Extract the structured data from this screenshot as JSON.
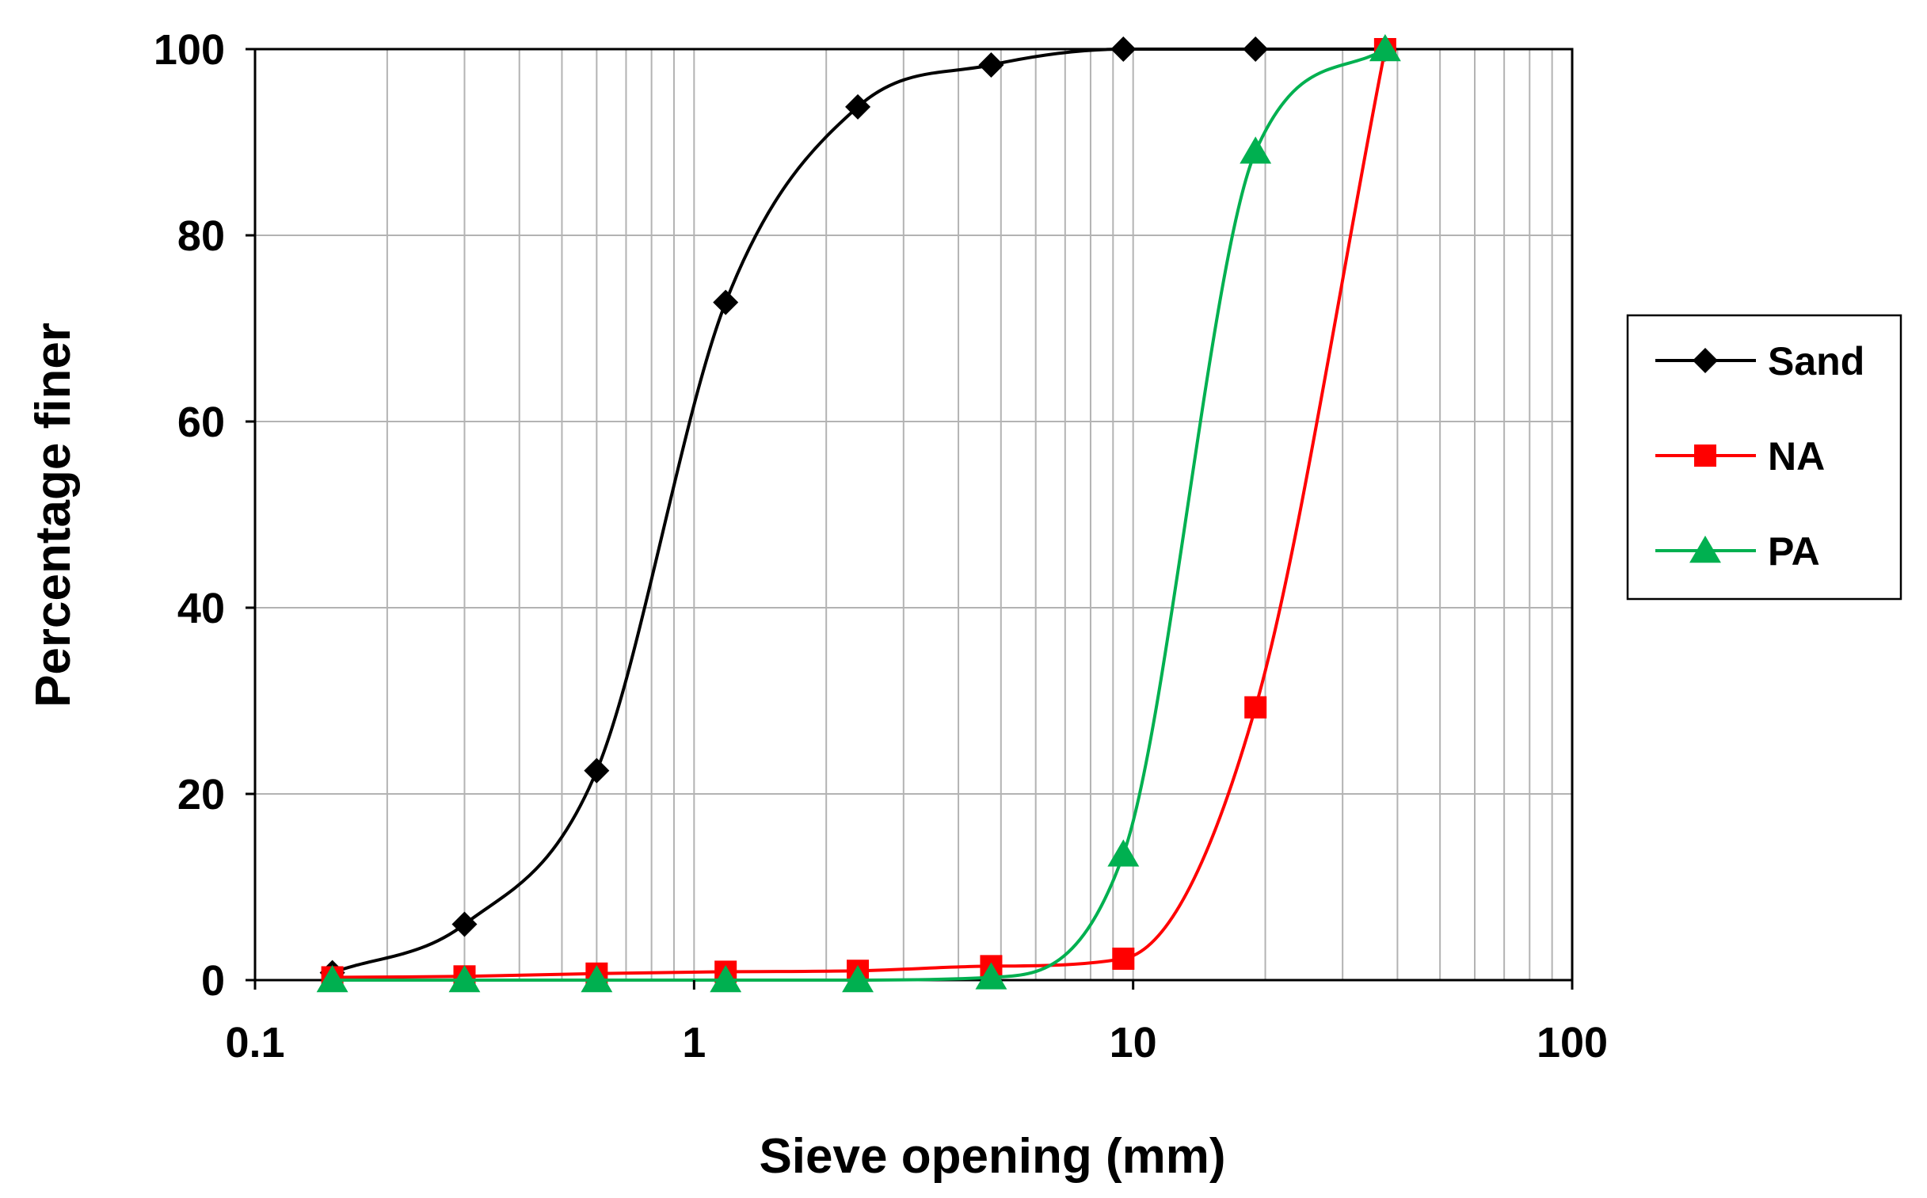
{
  "chart_data": {
    "type": "line",
    "title": "",
    "xlabel": "Sieve opening (mm)",
    "ylabel": "Percentage finer",
    "xscale": "log",
    "xlim": [
      0.1,
      100
    ],
    "ylim": [
      0,
      100
    ],
    "x_ticks": [
      "0.1",
      "1",
      "10",
      "100"
    ],
    "y_ticks": [
      "0",
      "20",
      "40",
      "60",
      "80",
      "100"
    ],
    "grid": true,
    "legend_position": "right",
    "series": [
      {
        "name": "Sand",
        "color": "#000000",
        "marker": "diamond",
        "x": [
          0.15,
          0.3,
          0.6,
          1.18,
          2.36,
          4.75,
          9.5,
          19,
          37.5
        ],
        "y": [
          0.8,
          6,
          22.5,
          72.8,
          93.8,
          98.3,
          100,
          100,
          100
        ]
      },
      {
        "name": "NA",
        "color": "#ff0000",
        "marker": "square",
        "x": [
          0.15,
          0.3,
          0.6,
          1.18,
          2.36,
          4.75,
          9.5,
          19,
          37.5
        ],
        "y": [
          0.3,
          0.4,
          0.7,
          0.9,
          1,
          1.5,
          2.3,
          29.3,
          100
        ]
      },
      {
        "name": "PA",
        "color": "#00b050",
        "marker": "triangle",
        "x": [
          0.15,
          0.3,
          0.6,
          1.18,
          2.36,
          4.75,
          9.5,
          19,
          37.5
        ],
        "y": [
          0,
          0,
          0,
          0,
          0,
          0.3,
          13.5,
          89,
          100
        ]
      }
    ]
  }
}
